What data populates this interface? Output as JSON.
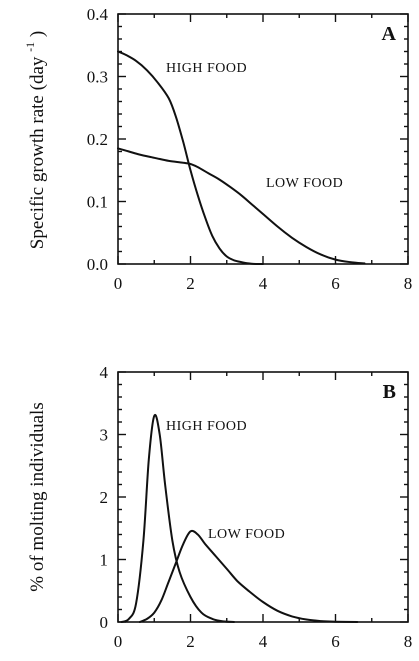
{
  "chart_data": [
    {
      "type": "line",
      "panel_label": "A",
      "ylabel": "Specific growth rate (day",
      "ylabel_superscript": "-1",
      "ylabel_close": ")",
      "xlim": [
        0,
        8
      ],
      "ylim": [
        0,
        0.4
      ],
      "xticks": [
        0,
        2,
        4,
        6,
        8
      ],
      "yticks": [
        0.0,
        0.1,
        0.2,
        0.3,
        0.4
      ],
      "ytick_labels": [
        "0.0",
        "0.1",
        "0.2",
        "0.3",
        "0.4"
      ],
      "grid": false,
      "series": [
        {
          "name": "HIGH FOOD",
          "x": [
            0,
            0.2,
            0.5,
            0.8,
            1.1,
            1.4,
            1.6,
            1.8,
            2.0,
            2.2,
            2.4,
            2.6,
            2.8,
            3.0,
            3.2,
            3.4,
            3.6,
            3.8,
            4.0
          ],
          "y": [
            0.34,
            0.335,
            0.325,
            0.31,
            0.29,
            0.265,
            0.235,
            0.195,
            0.15,
            0.11,
            0.075,
            0.045,
            0.025,
            0.012,
            0.006,
            0.003,
            0.001,
            0.0,
            0.0
          ]
        },
        {
          "name": "LOW FOOD",
          "x": [
            0,
            0.3,
            0.6,
            1.0,
            1.4,
            1.8,
            2.0,
            2.2,
            2.5,
            2.8,
            3.1,
            3.4,
            3.7,
            4.0,
            4.4,
            4.8,
            5.2,
            5.6,
            6.0,
            6.4,
            6.8
          ],
          "y": [
            0.185,
            0.18,
            0.175,
            0.17,
            0.165,
            0.162,
            0.16,
            0.155,
            0.145,
            0.135,
            0.123,
            0.11,
            0.095,
            0.08,
            0.06,
            0.042,
            0.027,
            0.015,
            0.007,
            0.003,
            0.001
          ]
        }
      ]
    },
    {
      "type": "line",
      "panel_label": "B",
      "ylabel": "% of molting individuals",
      "xlim": [
        0,
        8
      ],
      "ylim": [
        0,
        4
      ],
      "xticks": [
        0,
        2,
        4,
        6,
        8
      ],
      "yticks": [
        0,
        1,
        2,
        3,
        4
      ],
      "ytick_labels": [
        "0",
        "1",
        "2",
        "3",
        "4"
      ],
      "grid": false,
      "series": [
        {
          "name": "HIGH FOOD",
          "x": [
            0.1,
            0.3,
            0.5,
            0.7,
            0.85,
            1.0,
            1.15,
            1.3,
            1.5,
            1.7,
            2.0,
            2.3,
            2.6,
            2.9,
            3.2
          ],
          "y": [
            0.0,
            0.05,
            0.3,
            1.3,
            2.6,
            3.3,
            3.0,
            2.2,
            1.3,
            0.8,
            0.4,
            0.15,
            0.05,
            0.01,
            0.0
          ]
        },
        {
          "name": "LOW FOOD",
          "x": [
            0.6,
            0.8,
            1.0,
            1.2,
            1.4,
            1.6,
            1.8,
            2.0,
            2.2,
            2.4,
            2.7,
            3.0,
            3.3,
            3.6,
            4.0,
            4.4,
            4.8,
            5.2,
            5.6,
            6.0,
            6.6
          ],
          "y": [
            0.0,
            0.05,
            0.15,
            0.35,
            0.65,
            0.95,
            1.25,
            1.45,
            1.4,
            1.25,
            1.05,
            0.85,
            0.65,
            0.5,
            0.32,
            0.18,
            0.09,
            0.04,
            0.015,
            0.005,
            0.0
          ]
        }
      ]
    }
  ]
}
